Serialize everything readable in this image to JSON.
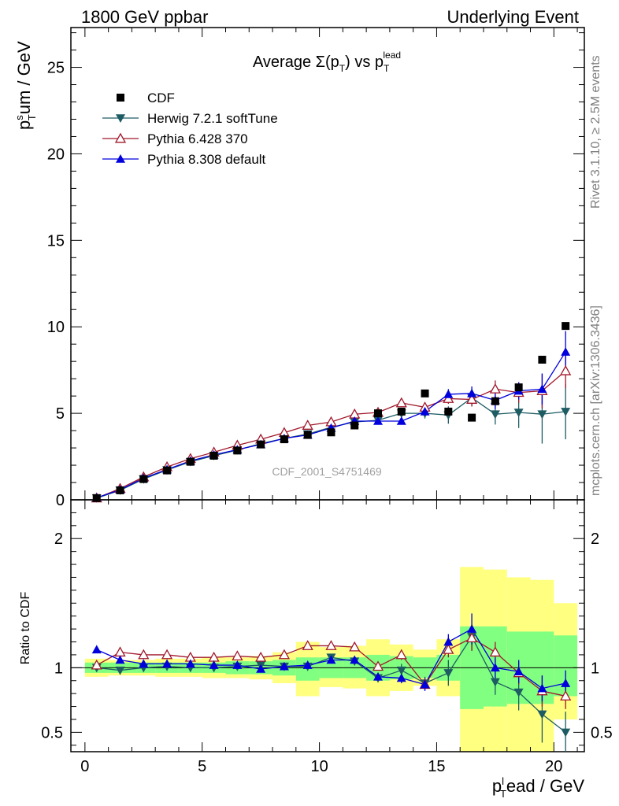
{
  "header": {
    "left": "1800 GeV ppbar",
    "right": "Underlying Event"
  },
  "side_labels": {
    "rivet": "Rivet 3.1.10, ≥ 2.5M events",
    "mcplots": "mcplots.cern.ch [arXiv:1306.3436]"
  },
  "chart_data": {
    "type": "scatter",
    "title": "Average Σ(p_T) vs p_T^lead",
    "title_parts": {
      "main": "Average Σ(p",
      "sub1": "T",
      "mid": ") vs p",
      "sup": "lead",
      "sub2": "T"
    },
    "watermark": "CDF_2001_S4751469",
    "ylabel": {
      "base": "p",
      "sup": "s",
      "sub": "T",
      "rest": "um / GeV"
    },
    "xlabel": {
      "base": "p",
      "sup": "l",
      "sub": "T",
      "rest": "ead / GeV"
    },
    "ratio_ylabel": "Ratio to CDF",
    "xlim": [
      -0.6,
      21.3
    ],
    "ylim": [
      0,
      27.3
    ],
    "ratio_ylim": [
      0.35,
      2.3
    ],
    "x_ticks": [
      0,
      5,
      10,
      15,
      20
    ],
    "x_tick_labels": [
      "0",
      "5",
      "10",
      "15",
      "20"
    ],
    "y_ticks": [
      0,
      5,
      10,
      15,
      20,
      25
    ],
    "y_tick_labels": [
      "0",
      "5",
      "10",
      "15",
      "20",
      "25"
    ],
    "ratio_ticks": [
      0.5,
      1,
      2
    ],
    "ratio_tick_labels": [
      "0.5",
      "1",
      "2"
    ],
    "legend_position": "top-left",
    "bins": [
      [
        0,
        1
      ],
      [
        1,
        2
      ],
      [
        2,
        3
      ],
      [
        3,
        4
      ],
      [
        4,
        5
      ],
      [
        5,
        6
      ],
      [
        6,
        7
      ],
      [
        7,
        8
      ],
      [
        8,
        9
      ],
      [
        9,
        10
      ],
      [
        10,
        11
      ],
      [
        11,
        12
      ],
      [
        12,
        13
      ],
      [
        13,
        14
      ],
      [
        14,
        15
      ],
      [
        15,
        16
      ],
      [
        16,
        17
      ],
      [
        17,
        18
      ],
      [
        18,
        19
      ],
      [
        19,
        20
      ],
      [
        20,
        21
      ]
    ],
    "data": {
      "name": "CDF",
      "color": "#000000",
      "x": [
        0.5,
        1.5,
        2.5,
        3.5,
        4.5,
        5.5,
        6.5,
        7.5,
        8.5,
        9.5,
        10.5,
        11.5,
        12.5,
        13.5,
        14.5,
        15.5,
        16.5,
        17.5,
        18.5,
        19.5,
        20.5
      ],
      "y": [
        0.1,
        0.55,
        1.2,
        1.7,
        2.2,
        2.55,
        2.85,
        3.2,
        3.5,
        3.75,
        3.9,
        4.3,
        5.0,
        5.1,
        6.15,
        5.1,
        4.75,
        5.7,
        6.5,
        8.1,
        10.05
      ]
    },
    "band_yellow": [
      [
        0.93,
        1.07
      ],
      [
        0.94,
        1.06
      ],
      [
        0.94,
        1.06
      ],
      [
        0.93,
        1.07
      ],
      [
        0.93,
        1.07
      ],
      [
        0.92,
        1.08
      ],
      [
        0.92,
        1.08
      ],
      [
        0.91,
        1.09
      ],
      [
        0.88,
        1.12
      ],
      [
        0.78,
        1.2
      ],
      [
        0.85,
        1.16
      ],
      [
        0.84,
        1.17
      ],
      [
        0.78,
        1.22
      ],
      [
        0.82,
        1.18
      ],
      [
        0.86,
        1.14
      ],
      [
        0.78,
        1.22
      ],
      [
        0.3,
        1.78
      ],
      [
        0.3,
        1.76
      ],
      [
        0.35,
        1.7
      ],
      [
        0.35,
        1.68
      ],
      [
        0.6,
        1.5
      ]
    ],
    "band_green": [
      [
        0.96,
        1.04
      ],
      [
        0.96,
        1.04
      ],
      [
        0.96,
        1.04
      ],
      [
        0.96,
        1.04
      ],
      [
        0.96,
        1.04
      ],
      [
        0.96,
        1.04
      ],
      [
        0.95,
        1.05
      ],
      [
        0.95,
        1.05
      ],
      [
        0.94,
        1.06
      ],
      [
        0.9,
        1.08
      ],
      [
        0.92,
        1.08
      ],
      [
        0.92,
        1.08
      ],
      [
        0.9,
        1.1
      ],
      [
        0.91,
        1.09
      ],
      [
        0.92,
        1.08
      ],
      [
        0.9,
        1.1
      ],
      [
        0.68,
        1.32
      ],
      [
        0.7,
        1.32
      ],
      [
        0.72,
        1.28
      ],
      [
        0.72,
        1.28
      ],
      [
        0.78,
        1.25
      ]
    ],
    "series": [
      {
        "name": "Herwig 7.2.1 softTune",
        "color": "#1d5c63",
        "marker": "triangle-down-filled",
        "y": [
          0.1,
          0.55,
          1.2,
          1.72,
          2.2,
          2.55,
          2.88,
          3.25,
          3.55,
          3.8,
          4.2,
          4.5,
          4.6,
          5.0,
          5.0,
          4.9,
          5.9,
          4.95,
          5.05,
          4.95,
          5.1
        ],
        "yerr": [
          0,
          0,
          0,
          0,
          0,
          0,
          0,
          0,
          0,
          0,
          0,
          0,
          0,
          0.3,
          0.3,
          0.5,
          0.5,
          0.6,
          0.9,
          1.7,
          1.6
        ],
        "ratio": [
          1.0,
          0.98,
          1.0,
          1.01,
          1.0,
          1.0,
          1.01,
          1.02,
          1.01,
          1.01,
          1.08,
          1.05,
          0.92,
          0.98,
          0.88,
          0.96,
          1.24,
          0.89,
          0.81,
          0.64,
          0.5
        ],
        "ratio_err": [
          0,
          0,
          0,
          0,
          0,
          0,
          0,
          0,
          0,
          0,
          0,
          0,
          0.03,
          0.05,
          0.05,
          0.1,
          0.1,
          0.1,
          0.14,
          0.22,
          0.16
        ]
      },
      {
        "name": "Pythia 6.428 370",
        "color": "#a0182b",
        "marker": "triangle-up-open",
        "y": [
          0.1,
          0.65,
          1.32,
          1.9,
          2.38,
          2.75,
          3.15,
          3.5,
          3.88,
          4.3,
          4.5,
          4.95,
          5.05,
          5.6,
          5.35,
          5.85,
          5.8,
          6.4,
          6.2,
          6.3,
          7.45
        ],
        "yerr": [
          0,
          0,
          0,
          0,
          0,
          0,
          0,
          0,
          0,
          0,
          0,
          0,
          0,
          0.2,
          0.2,
          0.3,
          0.4,
          0.5,
          0.6,
          1.0,
          1.0
        ],
        "ratio": [
          1.02,
          1.12,
          1.1,
          1.1,
          1.08,
          1.08,
          1.09,
          1.08,
          1.1,
          1.17,
          1.17,
          1.16,
          1.01,
          1.1,
          0.87,
          1.14,
          1.23,
          1.12,
          0.96,
          0.82,
          0.78
        ],
        "ratio_err": [
          0,
          0,
          0,
          0,
          0,
          0,
          0,
          0,
          0,
          0,
          0,
          0,
          0.03,
          0.04,
          0.04,
          0.06,
          0.1,
          0.08,
          0.09,
          0.12,
          0.1
        ]
      },
      {
        "name": "Pythia 8.308 default",
        "color": "#0000dd",
        "marker": "triangle-up-filled",
        "y": [
          0.12,
          0.58,
          1.25,
          1.75,
          2.25,
          2.6,
          2.9,
          3.2,
          3.55,
          3.75,
          4.15,
          4.55,
          4.55,
          4.55,
          5.1,
          6.1,
          6.15,
          5.75,
          6.3,
          6.4,
          8.55
        ],
        "yerr": [
          0,
          0,
          0,
          0,
          0,
          0,
          0,
          0,
          0,
          0,
          0,
          0,
          0,
          0.2,
          0.2,
          0.3,
          0.4,
          0.5,
          0.5,
          0.9,
          1.2
        ],
        "ratio": [
          1.14,
          1.06,
          1.03,
          1.03,
          1.03,
          1.02,
          1.02,
          0.99,
          1.01,
          1.02,
          1.06,
          1.06,
          0.93,
          0.92,
          0.87,
          1.2,
          1.3,
          1.0,
          0.97,
          0.84,
          0.88
        ],
        "ratio_err": [
          0,
          0,
          0,
          0,
          0,
          0,
          0,
          0,
          0,
          0,
          0,
          0,
          0.03,
          0.04,
          0.05,
          0.06,
          0.12,
          0.08,
          0.09,
          0.1,
          0.1
        ]
      }
    ]
  }
}
